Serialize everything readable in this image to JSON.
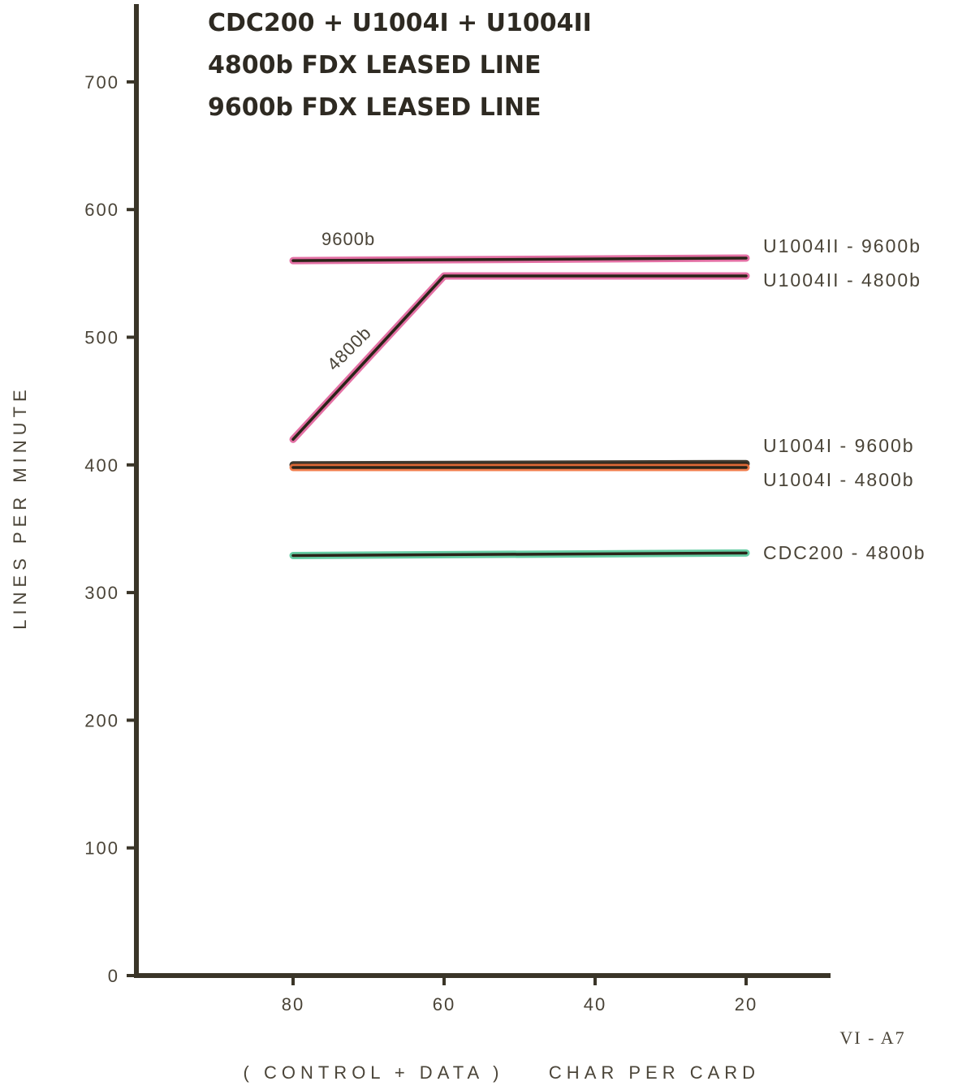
{
  "chart_data": {
    "type": "line",
    "title_lines": [
      "CDC200 + U1004I + U1004II",
      "4800b FDX LEASED LINE",
      "9600b FDX LEASED LINE"
    ],
    "ylabel": "LINES PER MINUTE",
    "xlabel_left": "( CONTROL + DATA )",
    "xlabel_right": "CHAR PER CARD",
    "figure_label": "VI - A7",
    "xlim": [
      100,
      10
    ],
    "ylim": [
      0,
      700
    ],
    "x_ticks": [
      80,
      60,
      40,
      20
    ],
    "y_ticks": [
      0,
      100,
      200,
      300,
      400,
      500,
      600,
      700
    ],
    "grid": false,
    "series": [
      {
        "name": "U1004II - 9600b",
        "color": "#e0609a",
        "x": [
          80,
          20
        ],
        "y": [
          560,
          562
        ]
      },
      {
        "name": "U1004II - 4800b",
        "color": "#e0609a",
        "x": [
          80,
          60,
          20
        ],
        "y": [
          420,
          548,
          548
        ]
      },
      {
        "name": "U1004I - 9600b",
        "color": "#2a2418",
        "x": [
          80,
          20
        ],
        "y": [
          400,
          401
        ]
      },
      {
        "name": "U1004I - 4800b",
        "color": "#f0703a",
        "x": [
          80,
          20
        ],
        "y": [
          398,
          398
        ]
      },
      {
        "name": "CDC200 - 4800b",
        "color": "#55c89a",
        "x": [
          80,
          20
        ],
        "y": [
          329,
          331
        ]
      }
    ],
    "annotations": [
      {
        "text": "9600b",
        "x": 74,
        "y": 570
      },
      {
        "text": "4800b",
        "x": 72,
        "y": 470
      }
    ]
  }
}
